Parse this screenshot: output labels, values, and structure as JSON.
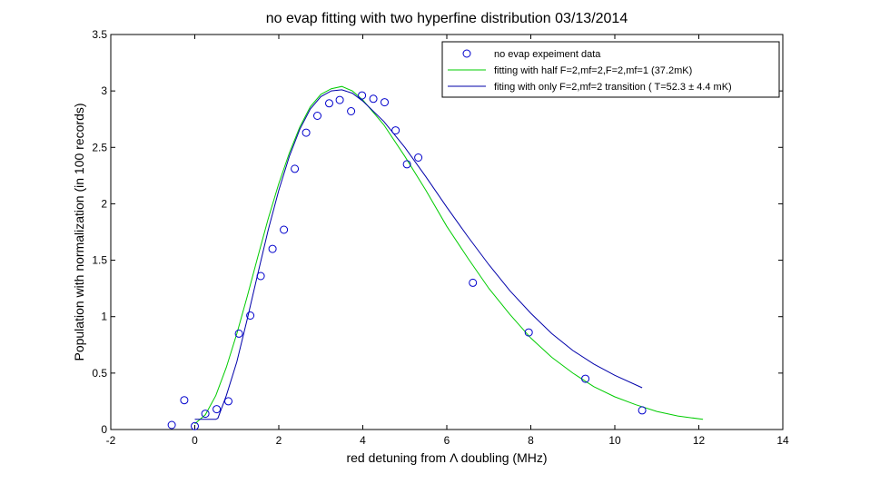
{
  "chart_data": {
    "type": "scatter",
    "title": "no evap fitting with two hyperfine distribution 03/13/2014",
    "xlabel": "red detuning from Λ doubling (MHz)",
    "ylabel": "Population with normalization (in 100 records)",
    "xlim": [
      -2,
      14
    ],
    "ylim": [
      0,
      3.5
    ],
    "xticks": [
      -2,
      0,
      2,
      4,
      6,
      8,
      10,
      12,
      14
    ],
    "yticks": [
      0,
      0.5,
      1,
      1.5,
      2,
      2.5,
      3,
      3.5
    ],
    "xtick_labels": [
      "-2",
      "0",
      "2",
      "4",
      "6",
      "8",
      "10",
      "12",
      "14"
    ],
    "ytick_labels": [
      "0",
      "0.5",
      "1",
      "1.5",
      "2",
      "2.5",
      "3",
      "3.5"
    ],
    "legend_position": "top-right",
    "grid": false,
    "series": [
      {
        "name": "no evap expeiment data",
        "kind": "markers",
        "marker": "circle",
        "color": "#0000cc",
        "x": [
          -0.55,
          -0.25,
          0.0,
          0.25,
          0.52,
          0.8,
          1.05,
          1.32,
          1.57,
          1.85,
          2.12,
          2.38,
          2.65,
          2.92,
          3.2,
          3.45,
          3.72,
          3.98,
          4.25,
          4.52,
          4.78,
          5.05,
          5.32,
          6.62,
          7.95,
          9.3,
          10.65
        ],
        "y": [
          0.04,
          0.26,
          0.03,
          0.14,
          0.18,
          0.25,
          0.85,
          1.01,
          1.36,
          1.6,
          1.77,
          2.31,
          2.63,
          2.78,
          2.89,
          2.92,
          2.82,
          2.96,
          2.93,
          2.9,
          2.65,
          2.35,
          2.41,
          1.3,
          0.86,
          0.45,
          0.17
        ]
      },
      {
        "name": "fitting with half F=2,mf=2,F=2,mf=1 (37.2mK)",
        "kind": "line",
        "color": "#00cc00",
        "x": [
          0.0,
          0.25,
          0.5,
          0.75,
          1.0,
          1.25,
          1.5,
          1.75,
          2.0,
          2.25,
          2.5,
          2.75,
          3.0,
          3.25,
          3.5,
          3.75,
          4.0,
          4.5,
          5.0,
          5.5,
          6.0,
          6.5,
          7.0,
          7.5,
          8.0,
          8.5,
          9.0,
          9.5,
          10.0,
          10.5,
          11.0,
          11.5,
          12.1
        ],
        "y": [
          0.05,
          0.13,
          0.3,
          0.55,
          0.85,
          1.18,
          1.53,
          1.87,
          2.18,
          2.45,
          2.68,
          2.86,
          2.97,
          3.02,
          3.04,
          3.0,
          2.92,
          2.7,
          2.42,
          2.12,
          1.8,
          1.52,
          1.25,
          1.02,
          0.81,
          0.64,
          0.5,
          0.38,
          0.29,
          0.22,
          0.16,
          0.12,
          0.09
        ]
      },
      {
        "name": "fiting with only F=2,mf=2 transition ( T=52.3 ± 4.4 mK)",
        "kind": "line",
        "color": "#0000aa",
        "x": [
          0.0,
          0.5,
          0.55,
          0.75,
          1.0,
          1.25,
          1.5,
          1.75,
          2.0,
          2.25,
          2.5,
          2.75,
          3.0,
          3.25,
          3.5,
          3.75,
          4.0,
          4.5,
          5.0,
          5.5,
          6.0,
          6.5,
          7.0,
          7.5,
          8.0,
          8.5,
          9.0,
          9.5,
          10.0,
          10.65
        ],
        "y": [
          0.09,
          0.09,
          0.1,
          0.3,
          0.6,
          0.98,
          1.38,
          1.77,
          2.12,
          2.42,
          2.66,
          2.84,
          2.95,
          3.0,
          3.01,
          2.98,
          2.91,
          2.73,
          2.5,
          2.24,
          1.97,
          1.71,
          1.46,
          1.23,
          1.03,
          0.85,
          0.7,
          0.58,
          0.48,
          0.37
        ]
      }
    ]
  }
}
